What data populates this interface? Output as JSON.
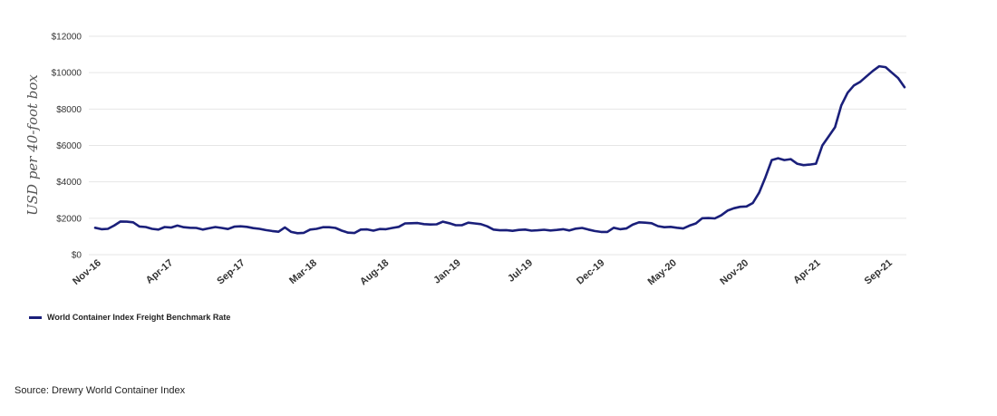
{
  "chart_data": {
    "type": "line",
    "ylabel": "USD per 40-foot box",
    "ylim": [
      0,
      12000
    ],
    "yticks": [
      0,
      2000,
      4000,
      6000,
      8000,
      10000,
      12000
    ],
    "ytick_labels": [
      "$0",
      "$2000",
      "$4000",
      "$6000",
      "$8000",
      "$10000",
      "$12000"
    ],
    "xtick_labels": [
      "Nov-16",
      "Apr-17",
      "Sep-17",
      "Mar-18",
      "Aug-18",
      "Jan-19",
      "Jul-19",
      "Dec-19",
      "May-20",
      "Nov-20",
      "Apr-21",
      "Sep-21"
    ],
    "grid": true,
    "legend_position": "bottom-left",
    "series": [
      {
        "name": "World Container Index Freight Benchmark Rate",
        "color": "#1a1f7a",
        "x": [
          "2016-11-10",
          "2016-11-24",
          "2016-12-08",
          "2016-12-22",
          "2017-01-05",
          "2017-01-19",
          "2017-02-02",
          "2017-02-16",
          "2017-03-02",
          "2017-03-16",
          "2017-03-30",
          "2017-04-13",
          "2017-04-27",
          "2017-05-11",
          "2017-05-25",
          "2017-06-08",
          "2017-06-22",
          "2017-07-06",
          "2017-07-20",
          "2017-08-03",
          "2017-08-17",
          "2017-08-31",
          "2017-09-14",
          "2017-09-28",
          "2017-10-12",
          "2017-10-26",
          "2017-11-09",
          "2017-11-23",
          "2017-12-07",
          "2017-12-21",
          "2018-01-04",
          "2018-01-18",
          "2018-02-01",
          "2018-02-15",
          "2018-03-01",
          "2018-03-15",
          "2018-03-29",
          "2018-04-12",
          "2018-04-26",
          "2018-05-10",
          "2018-05-24",
          "2018-06-07",
          "2018-06-21",
          "2018-07-05",
          "2018-07-19",
          "2018-08-02",
          "2018-08-16",
          "2018-08-30",
          "2018-09-13",
          "2018-09-27",
          "2018-10-11",
          "2018-10-25",
          "2018-11-08",
          "2018-11-22",
          "2018-12-06",
          "2018-12-20",
          "2019-01-03",
          "2019-01-17",
          "2019-01-31",
          "2019-02-14",
          "2019-02-28",
          "2019-03-14",
          "2019-03-28",
          "2019-04-11",
          "2019-04-25",
          "2019-05-09",
          "2019-05-23",
          "2019-06-06",
          "2019-06-20",
          "2019-07-04",
          "2019-07-18",
          "2019-08-01",
          "2019-08-15",
          "2019-08-29",
          "2019-09-12",
          "2019-09-26",
          "2019-10-10",
          "2019-10-24",
          "2019-11-07",
          "2019-11-21",
          "2019-12-05",
          "2019-12-19",
          "2020-01-02",
          "2020-01-16",
          "2020-01-30",
          "2020-02-13",
          "2020-02-27",
          "2020-03-12",
          "2020-03-26",
          "2020-04-09",
          "2020-04-23",
          "2020-05-07",
          "2020-05-21",
          "2020-06-04",
          "2020-06-18",
          "2020-07-02",
          "2020-07-16",
          "2020-07-30",
          "2020-08-13",
          "2020-08-27",
          "2020-09-10",
          "2020-09-24",
          "2020-10-08",
          "2020-10-22",
          "2020-11-05",
          "2020-11-19",
          "2020-12-03",
          "2020-12-17",
          "2020-12-31",
          "2021-01-14",
          "2021-01-28",
          "2021-02-11",
          "2021-02-25",
          "2021-03-11",
          "2021-03-25",
          "2021-04-08",
          "2021-04-22",
          "2021-05-06",
          "2021-05-20",
          "2021-06-03",
          "2021-06-17",
          "2021-07-01",
          "2021-07-15",
          "2021-07-29",
          "2021-08-12",
          "2021-08-26",
          "2021-09-09",
          "2021-09-23",
          "2021-10-07"
        ],
        "values": [
          1480,
          1400,
          1420,
          1600,
          1820,
          1810,
          1780,
          1550,
          1520,
          1420,
          1380,
          1520,
          1490,
          1600,
          1510,
          1480,
          1470,
          1380,
          1450,
          1520,
          1470,
          1410,
          1540,
          1560,
          1530,
          1460,
          1420,
          1350,
          1300,
          1260,
          1500,
          1250,
          1180,
          1200,
          1380,
          1420,
          1510,
          1510,
          1470,
          1320,
          1210,
          1190,
          1380,
          1390,
          1320,
          1410,
          1400,
          1470,
          1530,
          1720,
          1730,
          1740,
          1680,
          1660,
          1670,
          1810,
          1730,
          1620,
          1620,
          1760,
          1720,
          1680,
          1560,
          1380,
          1340,
          1350,
          1310,
          1360,
          1380,
          1320,
          1340,
          1370,
          1330,
          1360,
          1400,
          1330,
          1430,
          1470,
          1380,
          1300,
          1250,
          1250,
          1480,
          1400,
          1440,
          1650,
          1780,
          1760,
          1730,
          1570,
          1510,
          1530,
          1480,
          1440,
          1600,
          1720,
          2000,
          2010,
          1990,
          2160,
          2420,
          2550,
          2630,
          2650,
          2840,
          3400,
          4250,
          5200,
          5300,
          5200,
          5250,
          5000,
          4920,
          4950,
          5000,
          6000,
          6500,
          7000,
          8200,
          8900,
          9300,
          9500,
          9800,
          10100,
          10350,
          10300,
          10000,
          9700,
          9200
        ]
      }
    ]
  },
  "source": "Source: Drewry World Container Index"
}
